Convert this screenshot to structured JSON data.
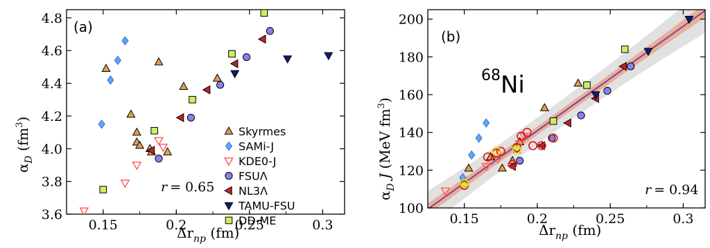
{
  "colors": {
    "Skyrmes": "#e0a050",
    "SAMi-J": "#5aa8ff",
    "KDE0-J": "#ff6060",
    "FSUΛ": "#8b7fe8",
    "NL3Λ": "#c0202a",
    "TAMU-FSU": "#0a1e78",
    "DD-ME": "#c8f060",
    "fit_line": "#8c3aa8",
    "band_inner": "#e6a07a",
    "band_outer": "#bdbdbd",
    "highlight_red": "#e02020",
    "highlight_yellow": "#e8e020"
  },
  "chart_data": [
    {
      "type": "scatter",
      "panel_label": "(a)",
      "xlabel": "Δr",
      "xlabel_sub": "np",
      "xlabel_unit": " (fm)",
      "ylabel": "α",
      "ylabel_sub": "D",
      "ylabel_unit": " (fm",
      "ylabel_unit_sup": "3",
      "ylabel_close": ")",
      "xlim": [
        0.125,
        0.315
      ],
      "ylim": [
        3.6,
        4.85
      ],
      "xticks": [
        0.15,
        0.2,
        0.25,
        0.3
      ],
      "xtick_labels": [
        "0.15",
        "0.2",
        "0.25",
        "0.3"
      ],
      "yticks": [
        3.6,
        3.8,
        4.0,
        4.2,
        4.4,
        4.6,
        4.8
      ],
      "ytick_labels": [
        "3.6",
        "3.8",
        "4.0",
        "4.2",
        "4.4",
        "4.6",
        "4.8"
      ],
      "correlation_text": "= 0.65",
      "correlation_symbol": "r",
      "series": [
        {
          "name": "Skyrmes",
          "marker": "triangle-up",
          "x": [
            0.152,
            0.169,
            0.173,
            0.173,
            0.175,
            0.182,
            0.183,
            0.188,
            0.194,
            0.205,
            0.228
          ],
          "y": [
            4.49,
            4.21,
            4.1,
            4.04,
            4.02,
            4.0,
            3.98,
            4.53,
            3.98,
            4.38,
            4.43
          ]
        },
        {
          "name": "SAMi-J",
          "marker": "diamond",
          "x": [
            0.149,
            0.155,
            0.16,
            0.165
          ],
          "y": [
            4.15,
            4.42,
            4.54,
            4.66
          ]
        },
        {
          "name": "KDE0-J",
          "marker": "triangle-down",
          "x": [
            0.137,
            0.165,
            0.173,
            0.188,
            0.191
          ],
          "y": [
            3.62,
            3.79,
            3.9,
            4.05,
            4.01
          ]
        },
        {
          "name": "FSUΛ",
          "marker": "circle",
          "x": [
            0.188,
            0.21,
            0.23,
            0.248,
            0.264
          ],
          "y": [
            3.94,
            4.19,
            4.39,
            4.56,
            4.72
          ]
        },
        {
          "name": "NL3Λ",
          "marker": "triangle-left",
          "x": [
            0.183,
            0.203,
            0.221,
            0.24,
            0.259
          ],
          "y": [
            3.99,
            4.19,
            4.36,
            4.52,
            4.67
          ]
        },
        {
          "name": "TAMU-FSU",
          "marker": "triangle-down-filled",
          "x": [
            0.24,
            0.276,
            0.304
          ],
          "y": [
            4.46,
            4.55,
            4.57
          ]
        },
        {
          "name": "DD-ME",
          "marker": "square",
          "x": [
            0.15,
            0.185,
            0.211,
            0.238,
            0.26
          ],
          "y": [
            3.75,
            4.11,
            4.3,
            4.58,
            4.83
          ]
        }
      ],
      "legend_entries": [
        "Skyrmes",
        "SAMi-J",
        "KDE0-J",
        "FSUΛ",
        "NL3Λ",
        "TAMU-FSU",
        "DD-ME"
      ]
    },
    {
      "type": "scatter",
      "panel_label": "(b)",
      "xlabel": "Δr",
      "xlabel_sub": "np",
      "xlabel_unit": " (fm)",
      "ylabel": "α",
      "ylabel_sub": "D",
      "ylabel_mid": " J",
      "ylabel_unit": " (MeV fm",
      "ylabel_unit_sup": "3",
      "ylabel_close": ")",
      "nucleus_mass": "68",
      "nucleus_symbol": "Ni",
      "xlim": [
        0.125,
        0.315
      ],
      "ylim": [
        100,
        205
      ],
      "xticks": [
        0.15,
        0.2,
        0.25,
        0.3
      ],
      "xtick_labels": [
        "0.15",
        "0.2",
        "0.25",
        "0.3"
      ],
      "yticks": [
        100,
        120,
        140,
        160,
        180,
        200
      ],
      "ytick_labels": [
        "100",
        "120",
        "140",
        "160",
        "180",
        "200"
      ],
      "correlation_text": "= 0.94",
      "correlation_symbol": "r",
      "fit_line": {
        "x": [
          0.137,
          0.305
        ],
        "y": [
          106,
          199
        ]
      },
      "series": [
        {
          "name": "Skyrmes",
          "marker": "triangle-up",
          "x": [
            0.153,
            0.168,
            0.176,
            0.183,
            0.188,
            0.205,
            0.228
          ],
          "y": [
            121,
            127,
            121,
            125,
            135,
            153,
            166
          ]
        },
        {
          "name": "SAMi-J",
          "marker": "diamond",
          "x": [
            0.149,
            0.155,
            0.16,
            0.165
          ],
          "y": [
            116,
            128,
            137,
            145
          ]
        },
        {
          "name": "KDE0-J",
          "marker": "triangle-down",
          "x": [
            0.137,
            0.165,
            0.173,
            0.188,
            0.191
          ],
          "y": [
            109,
            122,
            126,
            134,
            138
          ]
        },
        {
          "name": "FSUΛ",
          "marker": "circle",
          "x": [
            0.188,
            0.21,
            0.23,
            0.248,
            0.264
          ],
          "y": [
            125,
            137,
            149,
            162,
            175
          ]
        },
        {
          "name": "NL3Λ",
          "marker": "triangle-left",
          "x": [
            0.183,
            0.203,
            0.221,
            0.24,
            0.259
          ],
          "y": [
            122,
            133,
            145,
            158,
            175
          ]
        },
        {
          "name": "TAMU-FSU",
          "marker": "triangle-down-filled",
          "x": [
            0.24,
            0.276,
            0.304
          ],
          "y": [
            160,
            183,
            200
          ]
        },
        {
          "name": "DD-ME",
          "marker": "square",
          "x": [
            0.15,
            0.186,
            0.211,
            0.234,
            0.26
          ],
          "y": [
            113,
            131,
            146,
            165,
            184
          ]
        },
        {
          "name": "highlighted-red",
          "marker": "ring-red",
          "x": [
            0.15,
            0.166,
            0.172,
            0.175,
            0.183,
            0.186,
            0.189,
            0.193,
            0.197,
            0.203,
            0.211
          ],
          "y": [
            112,
            127,
            129,
            130,
            123,
            132,
            138,
            140,
            133,
            133,
            137
          ]
        },
        {
          "name": "highlighted-yellow",
          "marker": "ring-yellow",
          "x": [
            0.15,
            0.172,
            0.186
          ],
          "y": [
            113,
            130,
            131
          ]
        }
      ]
    }
  ]
}
